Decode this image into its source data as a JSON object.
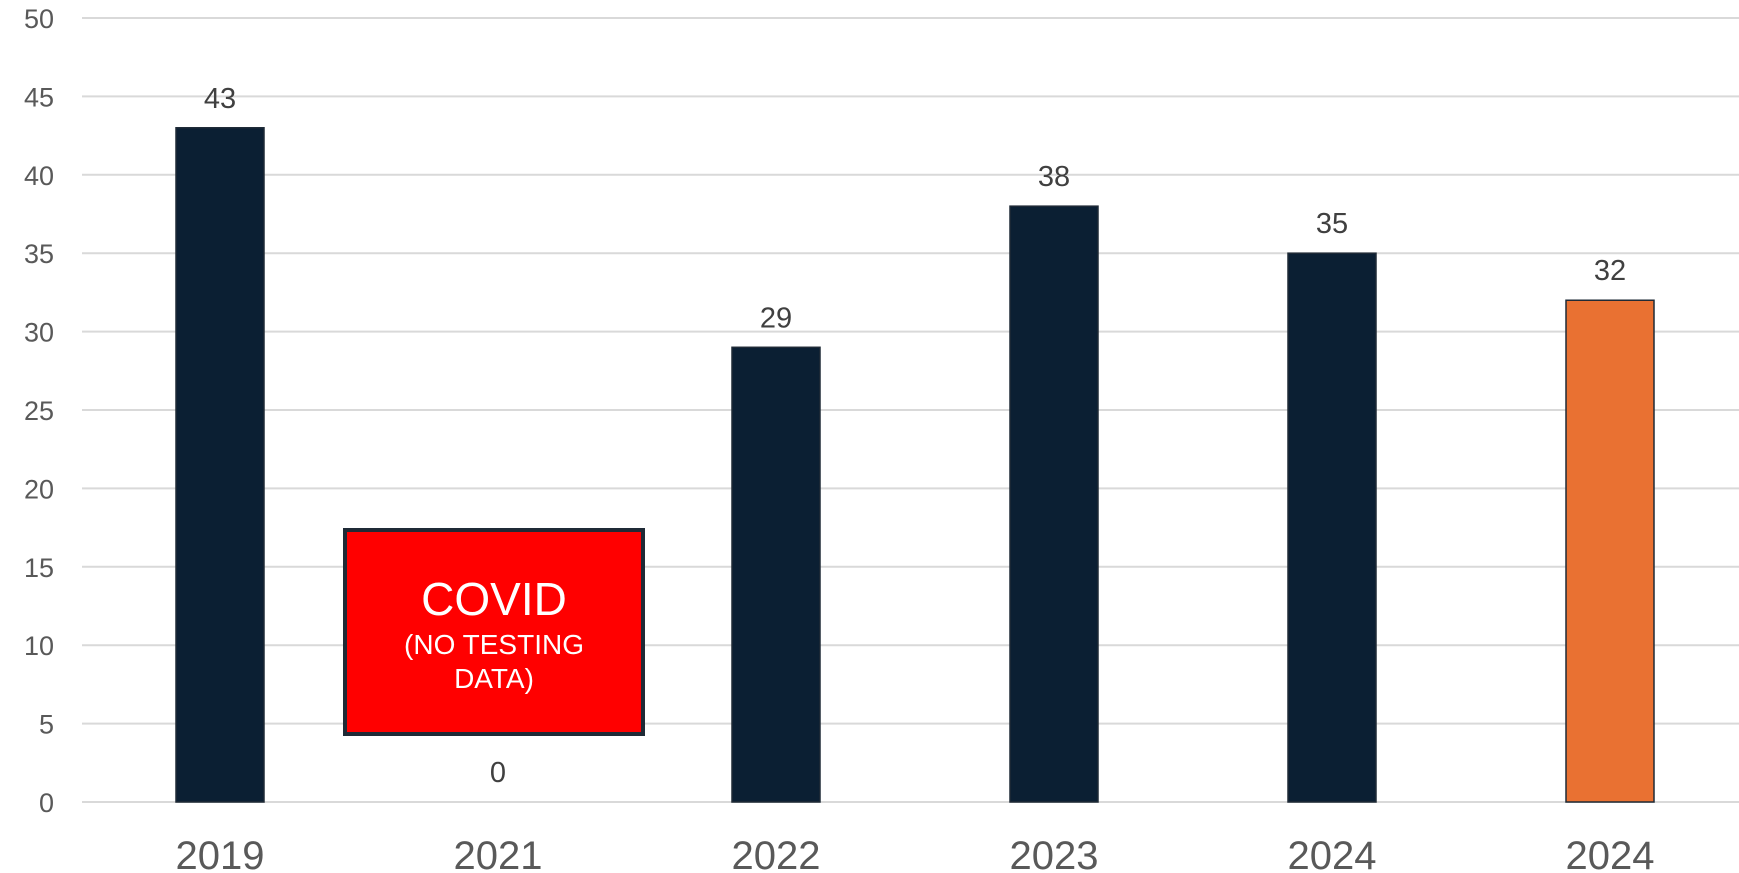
{
  "chart_data": {
    "type": "bar",
    "categories": [
      "2019",
      "2021",
      "2022",
      "2023",
      "2024",
      "2024"
    ],
    "values": [
      43,
      0,
      29,
      38,
      35,
      32
    ],
    "bar_colors": [
      "#0b1f33",
      "#0b1f33",
      "#0b1f33",
      "#0b1f33",
      "#0b1f33",
      "#e97132"
    ],
    "title": "",
    "xlabel": "",
    "ylabel": "",
    "ylim": [
      0,
      50
    ],
    "y_ticks": [
      0,
      5,
      10,
      15,
      20,
      25,
      30,
      35,
      40,
      45,
      50
    ],
    "grid": true,
    "legend": "none",
    "annotation": {
      "category_index": 1,
      "title": "COVID",
      "subtitle_line1": "(NO TESTING",
      "subtitle_line2": "DATA)",
      "fill": "#ff0000",
      "border": "#1f2a36"
    }
  }
}
